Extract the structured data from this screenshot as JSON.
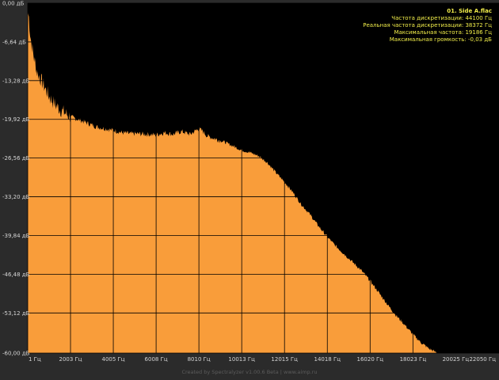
{
  "info": {
    "filename": "01. Side A.flac",
    "lines": [
      "Частота дискретизации: 44100 Гц",
      "Реальная частота дискретизации: 38372 Гц",
      "Максимальная частота: 19186 Гц",
      "Максимальная громкость: -0,03 дБ"
    ]
  },
  "footer": "Created by Spectralyzer v1.00.6 Beta | www.aimp.ru",
  "colors": {
    "fill": "#f99d3a",
    "plot_bg": "#000000",
    "grid": "#000000",
    "page_bg": "#2b2b2b",
    "text": "#d4d4d4",
    "info_text": "#f2ee4a"
  },
  "chart_data": {
    "type": "area",
    "title": "",
    "xlabel": "",
    "ylabel": "",
    "x_unit": "Гц",
    "y_unit": "дБ",
    "xlim": [
      1,
      22050
    ],
    "ylim": [
      -60,
      0
    ],
    "grid": true,
    "y_ticks": [
      0,
      -6.64,
      -13.28,
      -19.92,
      -26.56,
      -33.2,
      -39.84,
      -46.48,
      -53.12,
      -60
    ],
    "y_tick_labels": [
      "0,00 дБ",
      "-6,64 дБ",
      "-13,28 дБ",
      "-19,92 дБ",
      "-26,56 дБ",
      "-33,20 дБ",
      "-39,84 дБ",
      "-46,48 дБ",
      "-53,12 дБ",
      "-60,00 дБ"
    ],
    "x_ticks": [
      1,
      2003,
      4005,
      6008,
      8010,
      10013,
      12015,
      14018,
      16020,
      18023,
      20025,
      22050
    ],
    "x_tick_labels": [
      "1 Гц",
      "2003 Гц",
      "4005 Гц",
      "6008 Гц",
      "8010 Гц",
      "10013 Гц",
      "12015 Гц",
      "14018 Гц",
      "16020 Гц",
      "18023 Гц",
      "20025 Гц",
      "22050 Гц"
    ],
    "series": [
      {
        "x": [
          1,
          50,
          120,
          200,
          300,
          450,
          600,
          800,
          1000,
          1300,
          1600,
          2000,
          2400,
          2800,
          3200,
          3600,
          4000,
          4400,
          4800,
          5200,
          5600,
          6000,
          6400,
          6800,
          7200,
          7600,
          8000,
          8200,
          8400,
          8800,
          9200,
          9600,
          10000,
          10400,
          10800,
          11200,
          11600,
          12000,
          12400,
          12800,
          13200,
          13600,
          14000,
          14400,
          14800,
          15200,
          15600,
          16000,
          16400,
          16800,
          17200,
          17600,
          18000,
          18400,
          18800,
          19186
        ],
        "y": [
          -1.5,
          -2.2,
          -5.5,
          -7.5,
          -9.5,
          -12.0,
          -13.0,
          -14.5,
          -16.0,
          -17.5,
          -18.5,
          -19.5,
          -20.0,
          -20.6,
          -21.2,
          -21.5,
          -21.8,
          -22.2,
          -22.4,
          -22.4,
          -22.5,
          -22.6,
          -22.2,
          -22.5,
          -22.0,
          -22.5,
          -21.5,
          -22.0,
          -22.8,
          -23.3,
          -23.8,
          -24.5,
          -25.2,
          -25.6,
          -26.2,
          -27.3,
          -29.0,
          -30.6,
          -32.4,
          -34.5,
          -36.2,
          -38.2,
          -40.0,
          -41.6,
          -43.0,
          -44.4,
          -45.8,
          -47.5,
          -49.5,
          -51.5,
          -53.4,
          -55.0,
          -56.7,
          -58.2,
          -59.3,
          -60.0
        ]
      }
    ]
  }
}
